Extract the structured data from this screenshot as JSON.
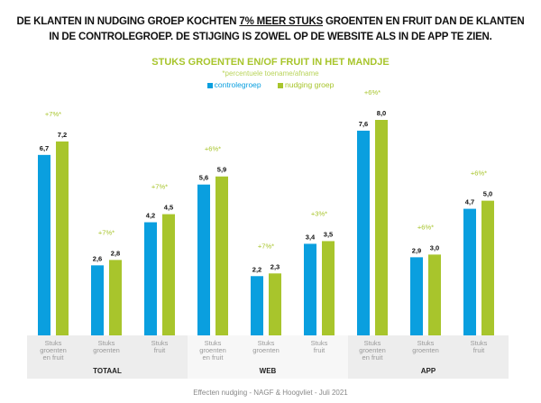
{
  "headline": {
    "line1_pre": "DE KLANTEN IN NUDGING GROEP KOCHTEN ",
    "line1_underlined": "7% MEER STUKS",
    "line1_post": " GROENTEN EN FRUIT DAN DE KLANTEN",
    "line2": "IN DE CONTROLEGROEP. DE STIJGING IS ZOWEL OP DE WEBSITE ALS IN DE APP TE ZIEN."
  },
  "footer": "Effecten nudging - NAGF & Hoogvliet - Juli 2021",
  "chart_data": {
    "type": "bar",
    "title": "STUKS GROENTEN EN/OF FRUIT IN HET MANDJE",
    "subtitle": "*percentuele toename/afname",
    "legend": [
      "controlegroep",
      "nudging groep"
    ],
    "colors": [
      "#0a9fdf",
      "#a8c52c"
    ],
    "groups": [
      "TOTAAL",
      "WEB",
      "APP"
    ],
    "categories": [
      "Stuks groenten en fruit",
      "Stuks groenten",
      "Stuks fruit",
      "Stuks groenten en fruit",
      "Stuks groenten",
      "Stuks fruit",
      "Stuks groenten en fruit",
      "Stuks groenten",
      "Stuks fruit"
    ],
    "series": [
      {
        "name": "controlegroep",
        "values": [
          6.7,
          2.6,
          4.2,
          5.6,
          2.2,
          3.4,
          7.6,
          2.9,
          4.7
        ],
        "labels": [
          "6,7",
          "2,6",
          "4,2",
          "5,6",
          "2,2",
          "3,4",
          "7,6",
          "2,9",
          "4,7"
        ]
      },
      {
        "name": "nudging groep",
        "values": [
          7.2,
          2.8,
          4.5,
          5.9,
          2.3,
          3.5,
          8.0,
          3.0,
          5.0
        ],
        "labels": [
          "7,2",
          "2,8",
          "4,5",
          "5,9",
          "2,3",
          "3,5",
          "8,0",
          "3,0",
          "5,0"
        ]
      }
    ],
    "change_labels": [
      "+7%*",
      "+7%*",
      "+7%*",
      "+6%*",
      "+7%*",
      "+3%*",
      "+6%*",
      "+6%*",
      "+6%*"
    ],
    "ylim": [
      0,
      8
    ]
  }
}
